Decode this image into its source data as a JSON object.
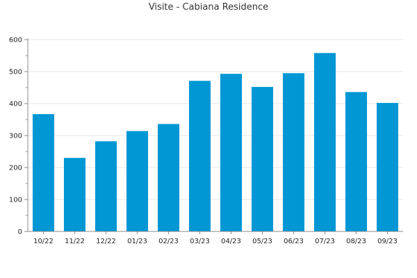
{
  "chart_data": {
    "type": "bar",
    "title": "Visite - Cabiana Residence",
    "categories": [
      "10/22",
      "11/22",
      "12/22",
      "01/23",
      "02/23",
      "03/23",
      "04/23",
      "05/23",
      "06/23",
      "07/23",
      "08/23",
      "09/23"
    ],
    "values": [
      367,
      230,
      282,
      314,
      336,
      471,
      493,
      452,
      495,
      558,
      436,
      402
    ],
    "ylim": [
      0,
      600
    ],
    "yticks": [
      0,
      100,
      200,
      300,
      400,
      500,
      600
    ],
    "grid": true,
    "legend": "none",
    "bar_color": "#0197d4"
  }
}
